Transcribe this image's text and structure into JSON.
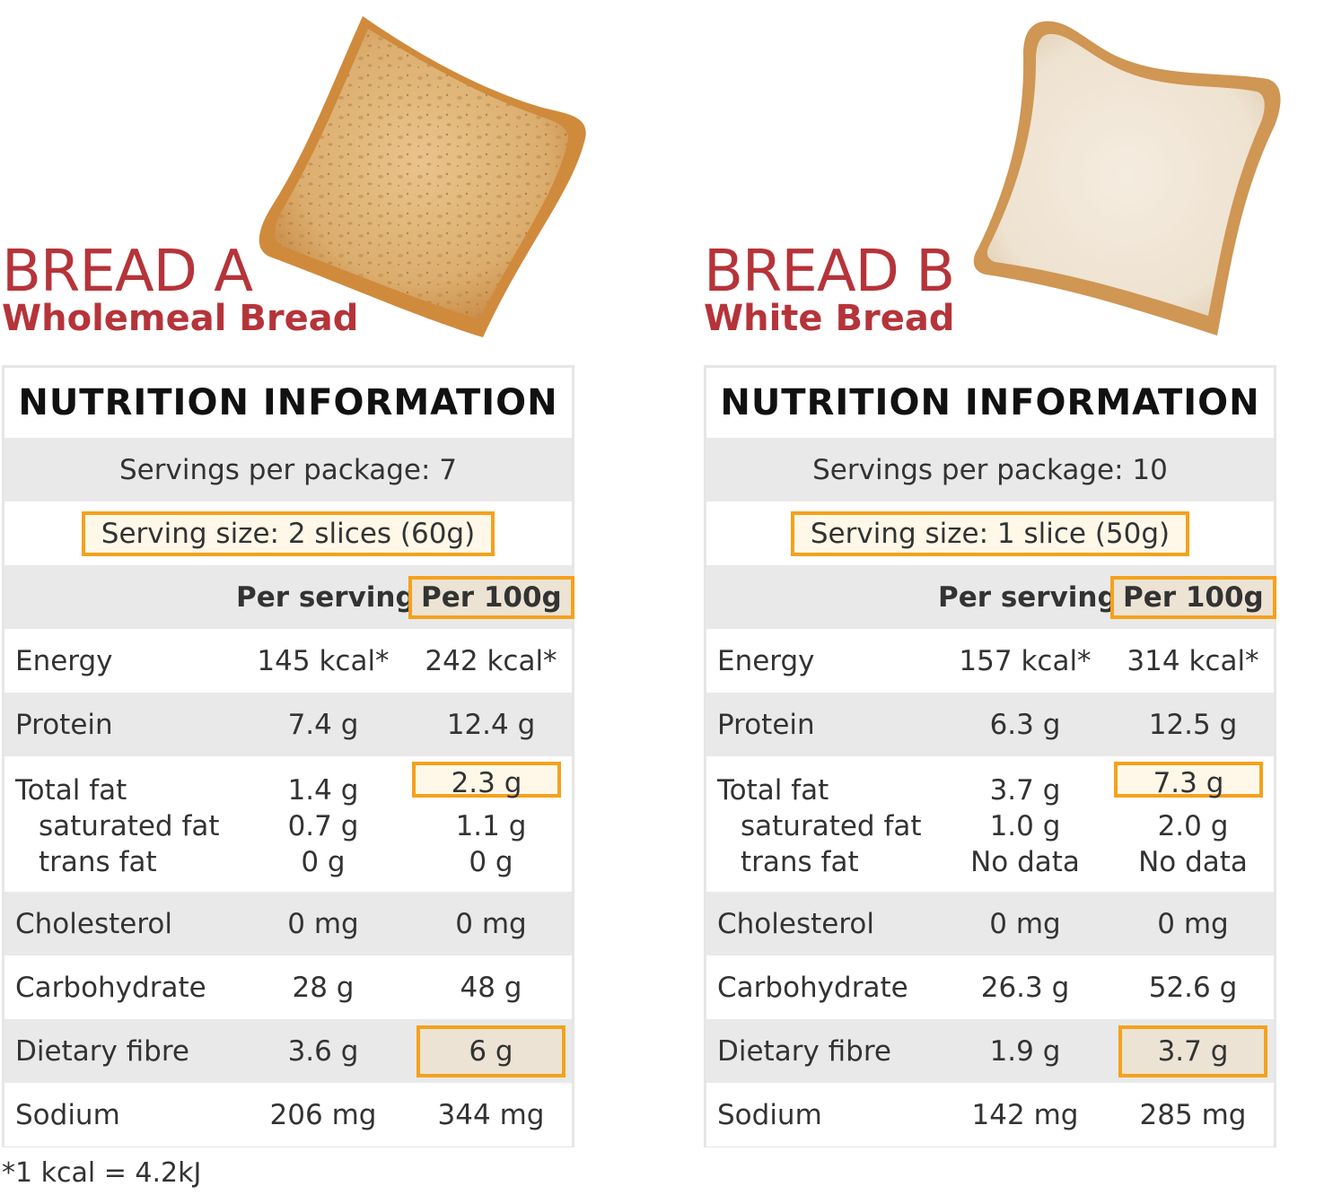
{
  "bread_a": {
    "title": "BREAD A",
    "subtitle": "Wholemeal Bread",
    "panel": {
      "heading": "NUTRITION INFORMATION",
      "servings_per_package": "Servings per package: 7",
      "serving_size": "Serving size: 2 slices (60g)",
      "col_per_serving": "Per serving",
      "col_per_100g": "Per 100g",
      "energy": {
        "label": "Energy",
        "serving": "145 kcal*",
        "per100": "242 kcal*"
      },
      "protein": {
        "label": "Protein",
        "serving": "7.4 g",
        "per100": "12.4 g"
      },
      "total_fat": {
        "label": "Total fat",
        "serving": "1.4 g",
        "per100": "2.3 g"
      },
      "saturated_fat": {
        "label": "saturated fat",
        "serving": "0.7 g",
        "per100": "1.1 g"
      },
      "trans_fat": {
        "label": "trans fat",
        "serving": "0 g",
        "per100": "0 g"
      },
      "cholesterol": {
        "label": "Cholesterol",
        "serving": "0 mg",
        "per100": "0 mg"
      },
      "carbohydrate": {
        "label": "Carbohydrate",
        "serving": "28 g",
        "per100": "48 g"
      },
      "dietary_fibre": {
        "label": "Dietary fibre",
        "serving": "3.6 g",
        "per100": "6 g"
      },
      "sodium": {
        "label": "Sodium",
        "serving": "206 mg",
        "per100": "344 mg"
      }
    }
  },
  "bread_b": {
    "title": "BREAD B",
    "subtitle": "White Bread",
    "panel": {
      "heading": "NUTRITION INFORMATION",
      "servings_per_package": "Servings per package: 10",
      "serving_size": "Serving size: 1 slice (50g)",
      "col_per_serving": "Per serving",
      "col_per_100g": "Per 100g",
      "energy": {
        "label": "Energy",
        "serving": "157 kcal*",
        "per100": "314 kcal*"
      },
      "protein": {
        "label": "Protein",
        "serving": "6.3 g",
        "per100": "12.5 g"
      },
      "total_fat": {
        "label": "Total fat",
        "serving": "3.7 g",
        "per100": "7.3 g"
      },
      "saturated_fat": {
        "label": "saturated fat",
        "serving": "1.0 g",
        "per100": "2.0 g"
      },
      "trans_fat": {
        "label": "trans fat",
        "serving": "No data",
        "per100": "No data"
      },
      "cholesterol": {
        "label": "Cholesterol",
        "serving": "0 mg",
        "per100": "0 mg"
      },
      "carbohydrate": {
        "label": "Carbohydrate",
        "serving": "26.3 g",
        "per100": "52.6 g"
      },
      "dietary_fibre": {
        "label": "Dietary fibre",
        "serving": "1.9 g",
        "per100": "3.7 g"
      },
      "sodium": {
        "label": "Sodium",
        "serving": "142 mg",
        "per100": "285 mg"
      }
    }
  },
  "footnote": "*1 kcal = 4.2kJ",
  "colors": {
    "title_red": "#b5343a",
    "highlight_orange": "#f5a11c",
    "row_grey": "#e9e9e9",
    "highlight_fill_light": "#fff8e8",
    "highlight_fill_tan": "#ece3d4"
  }
}
